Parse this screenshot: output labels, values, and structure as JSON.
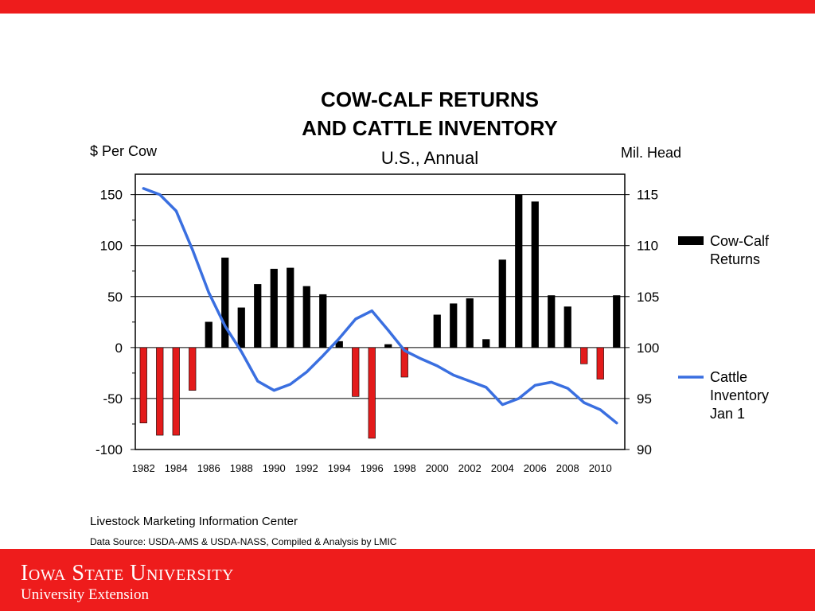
{
  "branding": {
    "university": "Iowa State University",
    "unit": "University Extension",
    "accent_color": "#ee1c1c"
  },
  "chart_data": {
    "type": "bar",
    "title_line1": "COW-CALF  RETURNS",
    "title_line2": "AND  CATTLE  INVENTORY",
    "subtitle": "U.S., Annual",
    "ylabel": "$ Per Cow",
    "ylabel_right": "Mil. Head",
    "ylim": [
      -100,
      170
    ],
    "ylim_right": [
      90,
      117
    ],
    "yticks": [
      -100,
      -50,
      0,
      50,
      100,
      150
    ],
    "yticks_right": [
      90,
      95,
      100,
      105,
      110,
      115
    ],
    "xtick_labels": [
      "1982",
      "1984",
      "1986",
      "1988",
      "1990",
      "1992",
      "1994",
      "1996",
      "1998",
      "2000",
      "2002",
      "2004",
      "2006",
      "2008",
      "2010"
    ],
    "categories": [
      1982,
      1983,
      1984,
      1985,
      1986,
      1987,
      1988,
      1989,
      1990,
      1991,
      1992,
      1993,
      1994,
      1995,
      1996,
      1997,
      1998,
      1999,
      2000,
      2001,
      2002,
      2003,
      2004,
      2005,
      2006,
      2007,
      2008,
      2009,
      2010,
      2011
    ],
    "grid": true,
    "legend_position": "right",
    "series": [
      {
        "name": "Cow-Calf Returns",
        "type": "bar",
        "axis": "left",
        "positive_color": "#000000",
        "negative_color": "#e31b1b",
        "values": [
          -74,
          -86,
          -86,
          -42,
          25,
          88,
          39,
          62,
          77,
          78,
          60,
          52,
          6,
          -48,
          -89,
          3,
          -29,
          0,
          32,
          43,
          48,
          8,
          86,
          150,
          143,
          51,
          40,
          -16,
          -31,
          51
        ]
      },
      {
        "name": "Cattle Inventory Jan 1",
        "type": "line",
        "axis": "right",
        "color": "#3a6fe0",
        "values": [
          115.6,
          115.0,
          113.4,
          109.6,
          105.4,
          102.1,
          99.6,
          96.7,
          95.8,
          96.4,
          97.6,
          99.2,
          100.9,
          102.8,
          103.6,
          101.7,
          99.7,
          98.9,
          98.2,
          97.3,
          96.7,
          96.1,
          94.4,
          95.0,
          96.3,
          96.6,
          96.0,
          94.6,
          93.9,
          92.6
        ]
      }
    ],
    "legend": {
      "bar_label_lines": [
        "Cow-Calf",
        "Returns"
      ],
      "line_label_lines": [
        "Cattle",
        "Inventory",
        "Jan 1"
      ]
    }
  },
  "footer": {
    "source_org": "Livestock Marketing Information Center",
    "data_source": "Data Source:  USDA-AMS & USDA-NASS, Compiled & Analysis by LMIC"
  }
}
